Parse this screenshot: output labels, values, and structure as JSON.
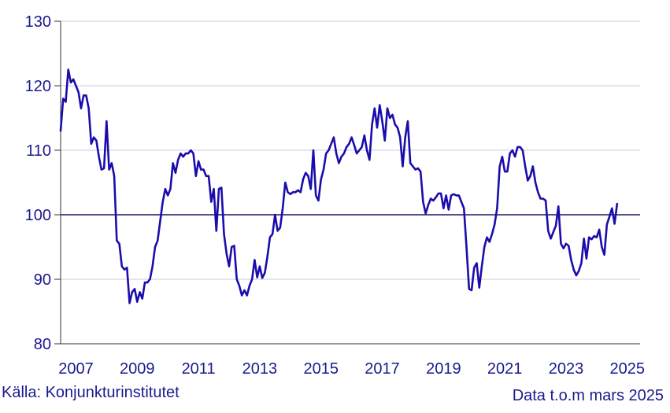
{
  "chart_data": {
    "type": "line",
    "title": "",
    "xlabel": "",
    "ylabel": "",
    "ylim": [
      80,
      130
    ],
    "xlim": [
      "2006-07",
      "2025-06"
    ],
    "yticks": [
      80,
      90,
      100,
      110,
      120,
      130
    ],
    "xticks": [
      "2007",
      "2009",
      "2011",
      "2013",
      "2015",
      "2017",
      "2019",
      "2021",
      "2023",
      "2025"
    ],
    "reference_line": 100,
    "grid": true,
    "line_color": "#1a0dab",
    "grid_color": "#c8c8e6",
    "series": [
      {
        "start": "2006-07",
        "end": "2025-03",
        "values": [
          113,
          118,
          117.5,
          122.5,
          120.5,
          121,
          120,
          119,
          116.5,
          118.5,
          118.5,
          116.5,
          111,
          112,
          111.5,
          109,
          107,
          107.2,
          114.5,
          107,
          108,
          106,
          96,
          95.5,
          92,
          91.5,
          91.8,
          86.3,
          88,
          88.5,
          86.5,
          88,
          87,
          89.5,
          89.5,
          90,
          92,
          95,
          96,
          99,
          102,
          104,
          103,
          104,
          108,
          106.5,
          108.5,
          109.5,
          109,
          109.5,
          109.5,
          110,
          109.5,
          106,
          108.3,
          107,
          107,
          106,
          106,
          102,
          104,
          97.5,
          104,
          104.2,
          97,
          94,
          92,
          95,
          95.2,
          90,
          89,
          87.5,
          88.3,
          87.5,
          89,
          90,
          93,
          90.3,
          92,
          90.2,
          91,
          93.5,
          96.5,
          97,
          100,
          97.5,
          98,
          101,
          105,
          103.5,
          103.2,
          103.5,
          103.5,
          103.8,
          103.5,
          105.5,
          106.5,
          106,
          104,
          110,
          103,
          102.2,
          105.5,
          107,
          109.5,
          110,
          111,
          112,
          109.5,
          108,
          109,
          109.5,
          110.5,
          111,
          112,
          110.8,
          109.5,
          110,
          110.5,
          112.3,
          110,
          108.5,
          114,
          116.5,
          113.5,
          117,
          114.5,
          111.5,
          116.5,
          115,
          115.5,
          114,
          113.5,
          112,
          107.5,
          112,
          114.5,
          108,
          107.5,
          107,
          107.2,
          106.7,
          102,
          100.2,
          101.5,
          102.5,
          102.2,
          102.7,
          103.3,
          103.3,
          101,
          103,
          100.8,
          103,
          103.2,
          103,
          103,
          102,
          101,
          95,
          88.5,
          88.3,
          91.8,
          92.5,
          88.7,
          92,
          95,
          96.5,
          95.8,
          97,
          98.5,
          101,
          107.5,
          109,
          106.7,
          106.7,
          109.5,
          110,
          109,
          110.5,
          110.5,
          110,
          107.5,
          105.3,
          106,
          107.5,
          105,
          103.5,
          102.5,
          102.5,
          102.2,
          97.5,
          96.3,
          97.3,
          98.3,
          101.3,
          95.5,
          94.8,
          95.5,
          95.2,
          93,
          91.5,
          90.6,
          91.3,
          92.5,
          96.3,
          93.2,
          96.5,
          96.2,
          96.7,
          96.5,
          97.7,
          95,
          93.8,
          98.5,
          99.7,
          101,
          98.6,
          101.7
        ]
      }
    ],
    "source": "Källa: Konjunkturinstitutet",
    "note": "Data t.o.m mars 2025"
  }
}
